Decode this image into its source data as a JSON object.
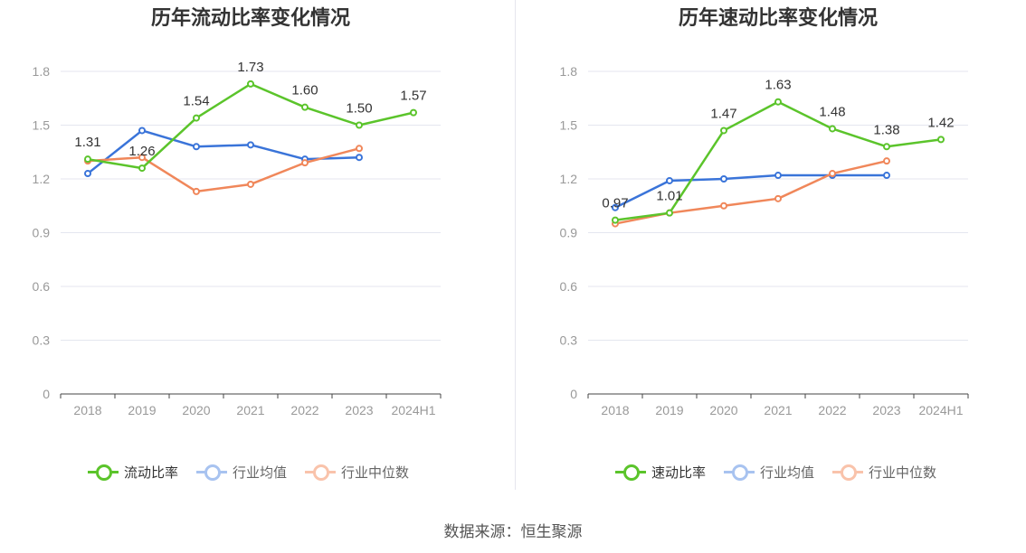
{
  "colors": {
    "main": "#5bc42b",
    "avg": "#3a74d9",
    "median": "#f0875a",
    "grid": "#e4e6ef",
    "axis": "#444444",
    "tick": "#999999"
  },
  "source": "数据来源：恒生聚源",
  "chart_data": [
    {
      "type": "line",
      "title": "历年流动比率变化情况",
      "categories": [
        "2018",
        "2019",
        "2020",
        "2021",
        "2022",
        "2023",
        "2024H1"
      ],
      "y_ticks": [
        "0",
        "0.3",
        "0.6",
        "0.9",
        "1.2",
        "1.5",
        "1.8"
      ],
      "ylim": [
        0,
        1.8
      ],
      "grid": true,
      "legend_position": "bottom",
      "series": [
        {
          "name": "流动比率",
          "color": "#5bc42b",
          "values": [
            1.31,
            1.26,
            1.54,
            1.73,
            1.6,
            1.5,
            1.57
          ],
          "labels": [
            "1.31",
            "1.26",
            "1.54",
            "1.73",
            "1.60",
            "1.50",
            "1.57"
          ]
        },
        {
          "name": "行业均值",
          "color": "#3a74d9",
          "values": [
            1.23,
            1.47,
            1.38,
            1.39,
            1.31,
            1.32,
            null
          ]
        },
        {
          "name": "行业中位数",
          "color": "#f0875a",
          "values": [
            1.3,
            1.32,
            1.13,
            1.17,
            1.29,
            1.37,
            null
          ]
        }
      ]
    },
    {
      "type": "line",
      "title": "历年速动比率变化情况",
      "categories": [
        "2018",
        "2019",
        "2020",
        "2021",
        "2022",
        "2023",
        "2024H1"
      ],
      "y_ticks": [
        "0",
        "0.3",
        "0.6",
        "0.9",
        "1.2",
        "1.5",
        "1.8"
      ],
      "ylim": [
        0,
        1.8
      ],
      "grid": true,
      "legend_position": "bottom",
      "series": [
        {
          "name": "速动比率",
          "color": "#5bc42b",
          "values": [
            0.97,
            1.01,
            1.47,
            1.63,
            1.48,
            1.38,
            1.42
          ],
          "labels": [
            "0.97",
            "1.01",
            "1.47",
            "1.63",
            "1.48",
            "1.38",
            "1.42"
          ]
        },
        {
          "name": "行业均值",
          "color": "#3a74d9",
          "values": [
            1.04,
            1.19,
            1.2,
            1.22,
            1.22,
            1.22,
            null
          ]
        },
        {
          "name": "行业中位数",
          "color": "#f0875a",
          "values": [
            0.95,
            1.01,
            1.05,
            1.09,
            1.23,
            1.3,
            null
          ]
        }
      ]
    }
  ]
}
